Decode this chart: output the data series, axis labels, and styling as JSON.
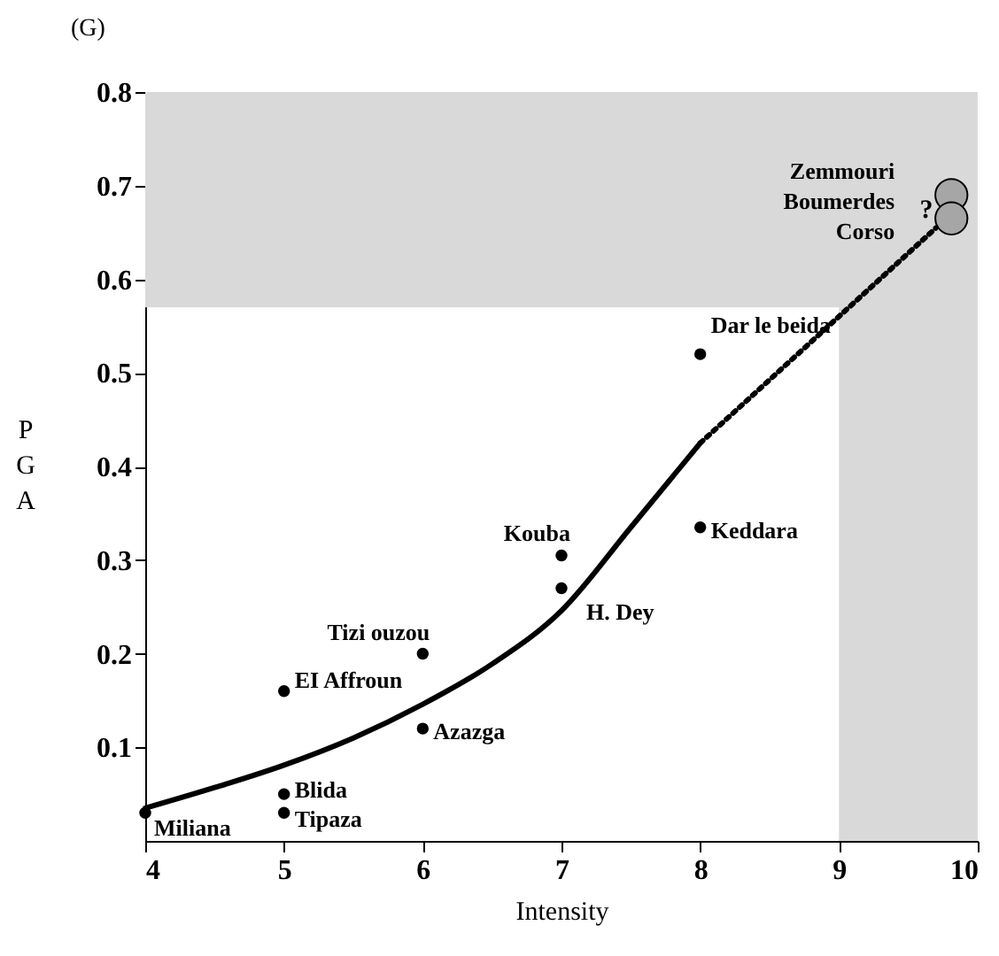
{
  "chart_data": {
    "type": "scatter",
    "title": "(G)",
    "xlabel": "Intensity",
    "ylabel": "PGA",
    "xlim": [
      4,
      10
    ],
    "xticks": [
      4,
      5,
      6,
      7,
      8,
      9,
      10
    ],
    "ylim": [
      0,
      0.8
    ],
    "yticks": [
      0.1,
      0.2,
      0.3,
      0.4,
      0.5,
      0.6,
      0.7,
      0.8
    ],
    "grid": false,
    "series": [
      {
        "color": "#000000",
        "x": [
          4,
          5,
          5,
          5,
          6,
          6,
          7,
          7,
          8,
          8
        ],
        "values": [
          0.03,
          0.16,
          0.05,
          0.03,
          0.2,
          0.12,
          0.305,
          0.27,
          0.52,
          0.335
        ]
      },
      {
        "type": "bubble",
        "color": "#a6a6a6",
        "x": [
          9.81,
          9.81
        ],
        "values": [
          0.69,
          0.665
        ],
        "sizes": [
          1,
          1
        ]
      },
      {
        "type": "line",
        "color": "#000000",
        "line_style": "solid",
        "x": [
          4,
          4.5,
          5,
          5.5,
          6,
          6.5,
          7,
          7.5,
          8
        ],
        "values": [
          0.035,
          0.057,
          0.081,
          0.11,
          0.146,
          0.189,
          0.246,
          0.335,
          0.425
        ]
      },
      {
        "type": "line",
        "color": "#000000",
        "line_style": "dotted",
        "x": [
          8,
          9.7
        ],
        "values": [
          0.425,
          0.655
        ]
      }
    ],
    "bands": [
      {
        "axis": "y",
        "from": 0.57,
        "to": 0.8,
        "color": "#d9d9d9"
      },
      {
        "axis": "x",
        "from": 9,
        "to": 10,
        "color": "#d9d9d9"
      }
    ],
    "annotations": [
      {
        "text": "Miliana",
        "x": 4,
        "y": 0.03
      },
      {
        "text": "EI Affroun",
        "x": 5,
        "y": 0.16
      },
      {
        "text": "Blida",
        "x": 5,
        "y": 0.05
      },
      {
        "text": "Tipaza",
        "x": 5,
        "y": 0.03
      },
      {
        "text": "Tizi ouzou",
        "x": 6,
        "y": 0.2
      },
      {
        "text": "Azazga",
        "x": 6,
        "y": 0.12
      },
      {
        "text": "Kouba",
        "x": 7,
        "y": 0.305
      },
      {
        "text": "H. Dey",
        "x": 7,
        "y": 0.27
      },
      {
        "text": "Dar le beida",
        "x": 8,
        "y": 0.52
      },
      {
        "text": "Keddara",
        "x": 8,
        "y": 0.335
      },
      {
        "text": "Zemmouri\nBoumerdes\nCorso",
        "x": 9.81,
        "y": 0.69
      },
      "?"
    ]
  }
}
